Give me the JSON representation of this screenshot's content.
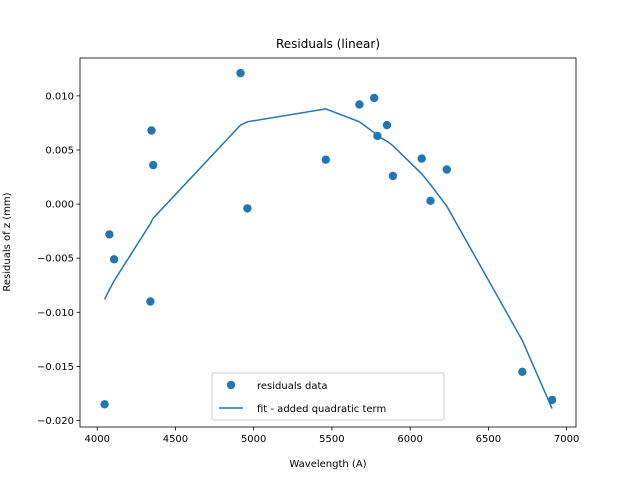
{
  "chart_data": {
    "type": "scatter",
    "title": "Residuals (linear)",
    "xlabel": "Wavelength (A)",
    "ylabel": "Residuals of z (mm)",
    "xlim": [
      3890,
      7060
    ],
    "ylim": [
      -0.0206,
      0.0135
    ],
    "xticks": [
      4000,
      4500,
      5000,
      5500,
      6000,
      6500,
      7000
    ],
    "xtick_labels": [
      "4000",
      "4500",
      "5000",
      "5500",
      "6000",
      "6500",
      "7000"
    ],
    "yticks": [
      -0.02,
      -0.015,
      -0.01,
      -0.005,
      0.0,
      0.005,
      0.01
    ],
    "ytick_labels": [
      "−0.020",
      "−0.015",
      "−0.010",
      "−0.005",
      "0.000",
      "0.005",
      "0.010"
    ],
    "grid": false,
    "legend_placement": "lower center",
    "color": "#1f77b4",
    "series": [
      {
        "name": "residuals data",
        "kind": "scatter",
        "x": [
          4047,
          4078,
          4108,
          4340,
          4347,
          4358,
          4916,
          4960,
          5461,
          5676,
          5770,
          5791,
          5852,
          5890,
          6074,
          6130,
          6234,
          6717,
          6907
        ],
        "y": [
          -0.0185,
          -0.0028,
          -0.0051,
          -0.009,
          0.0068,
          0.0036,
          0.0121,
          -0.0004,
          0.0041,
          0.0092,
          0.0098,
          0.0063,
          0.0073,
          0.0026,
          0.0042,
          0.0003,
          0.0032,
          -0.0155,
          -0.0181
        ]
      },
      {
        "name": "fit - added quadratic term",
        "kind": "line",
        "x": [
          4047,
          4078,
          4108,
          4340,
          4347,
          4358,
          4916,
          4960,
          5461,
          5676,
          5770,
          5791,
          5852,
          5890,
          6074,
          6130,
          6234,
          6717,
          6907
        ],
        "y": [
          -0.0088,
          -0.0079,
          -0.0071,
          -0.0018,
          -0.0016,
          -0.0013,
          0.0073,
          0.0076,
          0.0088,
          0.0076,
          0.0066,
          0.0063,
          0.0058,
          0.0054,
          0.0028,
          0.0018,
          -0.0002,
          -0.0126,
          -0.0189
        ]
      }
    ]
  }
}
